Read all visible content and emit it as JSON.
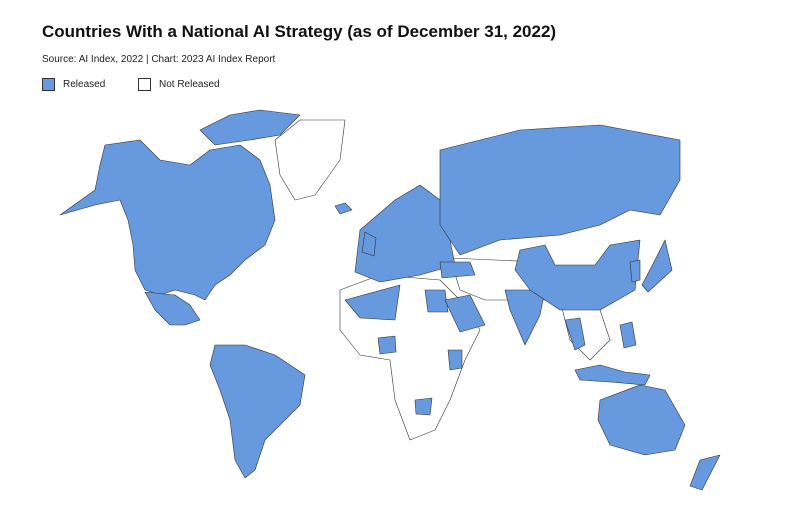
{
  "header": {
    "title": "Countries With a National AI Strategy (as of December 31, 2022)",
    "subtitle": "Source: AI Index, 2022 | Chart: 2023 AI Index Report"
  },
  "legend": [
    {
      "label": "Released",
      "color": "#6699dd"
    },
    {
      "label": "Not Released",
      "color": "#ffffff"
    }
  ]
}
